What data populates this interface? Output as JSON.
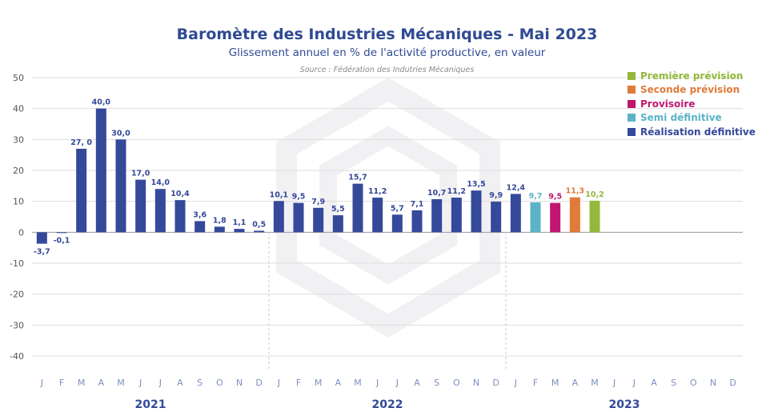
{
  "header": {
    "title": "Baromètre des Industries Mécaniques - Mai 2023",
    "subtitle": "Glissement annuel en % de l'activité productive, en valeur",
    "source": "Source : Fédération des Indutries Mécaniques"
  },
  "legend": [
    {
      "label": "Première prévision",
      "color": "#94b83c"
    },
    {
      "label": "Seconde prévision",
      "color": "#e07b39"
    },
    {
      "label": "Provisoire",
      "color": "#c0166f"
    },
    {
      "label": "Semi définitive",
      "color": "#5bb3c7"
    },
    {
      "label": "Réalisation définitive",
      "color": "#34499a"
    }
  ],
  "chart_data": {
    "type": "bar",
    "title": "Baromètre des Industries Mécaniques - Mai 2023",
    "subtitle": "Glissement annuel en % de l'activité productive, en valeur",
    "ylim": [
      -40,
      50
    ],
    "yticks": [
      50,
      40,
      30,
      20,
      10,
      0,
      -10,
      -20,
      -30,
      -40
    ],
    "grid": true,
    "legend_position": "top-right",
    "month_labels": [
      "J",
      "F",
      "M",
      "A",
      "M",
      "J",
      "J",
      "A",
      "S",
      "O",
      "N",
      "D",
      "J",
      "F",
      "M",
      "A",
      "M",
      "J",
      "J",
      "A",
      "S",
      "O",
      "N",
      "D",
      "J",
      "F",
      "M",
      "A",
      "M",
      "J",
      "J",
      "A",
      "S",
      "O",
      "N",
      "D"
    ],
    "years": [
      "2021",
      "2022",
      "2023"
    ],
    "bars": [
      {
        "value": -3.7,
        "label": "-3,7",
        "status": "Réalisation définitive"
      },
      {
        "value": -0.1,
        "label": "-0,1",
        "status": "Réalisation définitive"
      },
      {
        "value": 27.0,
        "label": "27, 0",
        "status": "Réalisation définitive"
      },
      {
        "value": 40.0,
        "label": "40,0",
        "status": "Réalisation définitive"
      },
      {
        "value": 30.0,
        "label": "30,0",
        "status": "Réalisation définitive"
      },
      {
        "value": 17.0,
        "label": "17,0",
        "status": "Réalisation définitive"
      },
      {
        "value": 14.0,
        "label": "14,0",
        "status": "Réalisation définitive"
      },
      {
        "value": 10.4,
        "label": "10,4",
        "status": "Réalisation définitive"
      },
      {
        "value": 3.6,
        "label": "3,6",
        "status": "Réalisation définitive"
      },
      {
        "value": 1.8,
        "label": "1,8",
        "status": "Réalisation définitive"
      },
      {
        "value": 1.1,
        "label": "1,1",
        "status": "Réalisation définitive"
      },
      {
        "value": 0.5,
        "label": "0,5",
        "status": "Réalisation définitive"
      },
      {
        "value": 10.1,
        "label": "10,1",
        "status": "Réalisation définitive"
      },
      {
        "value": 9.5,
        "label": "9,5",
        "status": "Réalisation définitive"
      },
      {
        "value": 7.9,
        "label": "7,9",
        "status": "Réalisation définitive"
      },
      {
        "value": 5.5,
        "label": "5,5",
        "status": "Réalisation définitive"
      },
      {
        "value": 15.7,
        "label": "15,7",
        "status": "Réalisation définitive"
      },
      {
        "value": 11.2,
        "label": "11,2",
        "status": "Réalisation définitive"
      },
      {
        "value": 5.7,
        "label": "5,7",
        "status": "Réalisation définitive"
      },
      {
        "value": 7.1,
        "label": "7,1",
        "status": "Réalisation définitive"
      },
      {
        "value": 10.7,
        "label": "10,7",
        "status": "Réalisation définitive"
      },
      {
        "value": 11.2,
        "label": "11,2",
        "status": "Réalisation définitive"
      },
      {
        "value": 13.5,
        "label": "13,5",
        "status": "Réalisation définitive"
      },
      {
        "value": 9.9,
        "label": "9,9",
        "status": "Réalisation définitive"
      },
      {
        "value": 12.4,
        "label": "12,4",
        "status": "Réalisation définitive"
      },
      {
        "value": 9.7,
        "label": "9,7",
        "status": "Semi définitive"
      },
      {
        "value": 9.5,
        "label": "9,5",
        "status": "Provisoire"
      },
      {
        "value": 11.3,
        "label": "11,3",
        "status": "Seconde prévision"
      },
      {
        "value": 10.2,
        "label": "10,2",
        "status": "Première prévision"
      }
    ]
  }
}
